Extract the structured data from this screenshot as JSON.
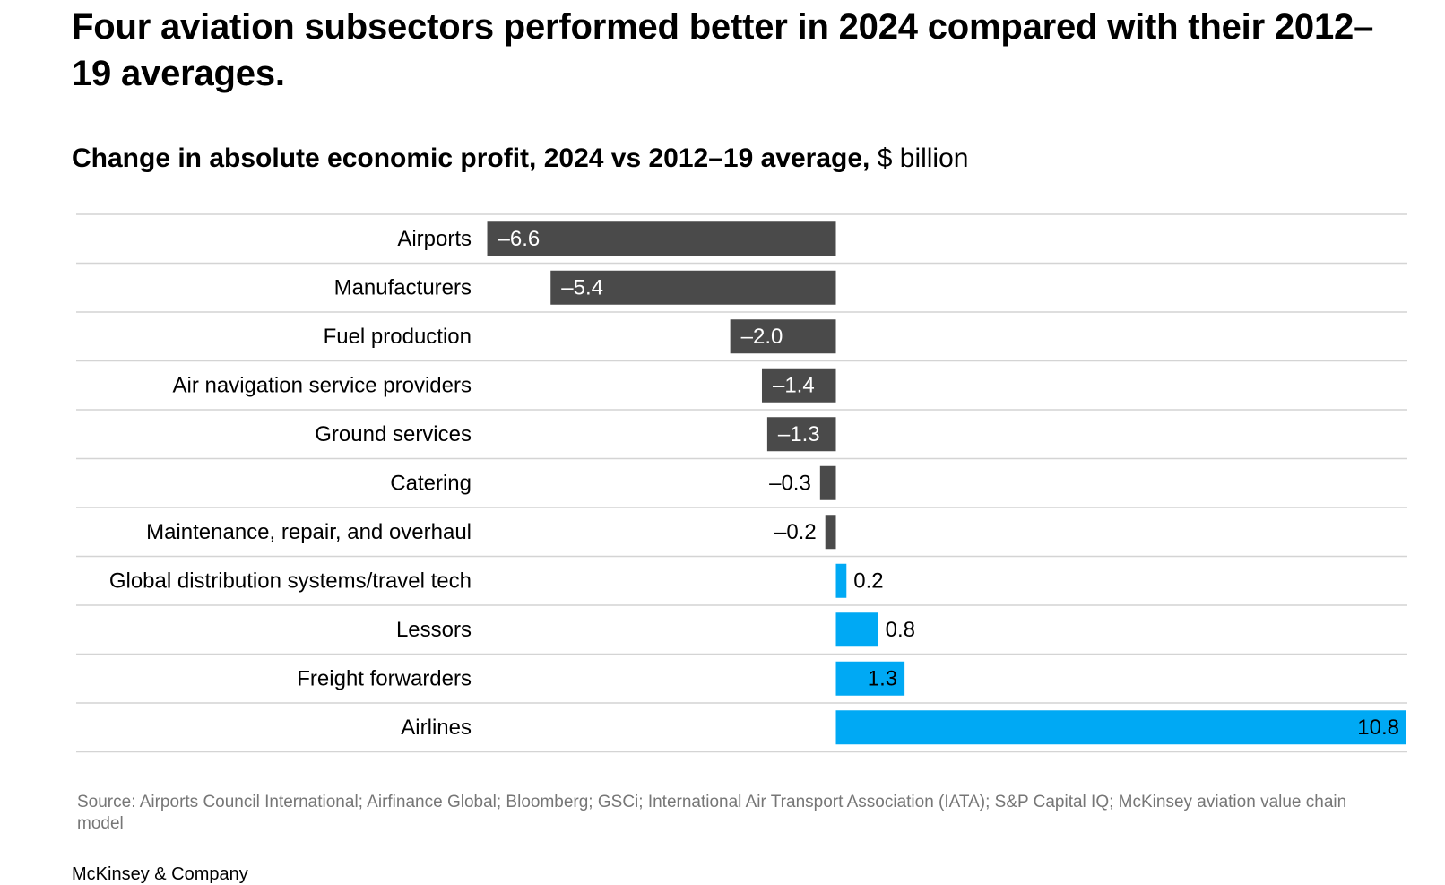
{
  "headline": "Four aviation subsectors performed better in 2024 compared with their 2012–19 averages.",
  "subtitle_bold": "Change in absolute economic profit, 2024 vs 2012–19 average,",
  "subtitle_unit": "$ billion",
  "source": "Source: Airports Council International; Airfinance Global; Bloomberg; GSCi; International Air Transport Association (IATA); S&P Capital IQ; McKinsey aviation value chain model",
  "brand": "McKinsey & Company",
  "colors": {
    "negative": "#4a4a4a",
    "positive": "#00a9f4",
    "gridline": "#d4d4d4"
  },
  "chart_data": {
    "type": "bar",
    "orientation": "horizontal",
    "title": "Change in absolute economic profit, 2024 vs 2012–19 average, $ billion",
    "categories": [
      "Airports",
      "Manufacturers",
      "Fuel production",
      "Air navigation service providers",
      "Ground services",
      "Catering",
      "Maintenance, repair, and overhaul",
      "Global distribution systems/travel tech",
      "Lessors",
      "Freight forwarders",
      "Airlines"
    ],
    "values": [
      -6.6,
      -5.4,
      -2.0,
      -1.4,
      -1.3,
      -0.3,
      -0.2,
      0.2,
      0.8,
      1.3,
      10.8
    ],
    "value_labels": [
      "–6.6",
      "–5.4",
      "–2.0",
      "–1.4",
      "–1.3",
      "–0.3",
      "–0.2",
      "0.2",
      "0.8",
      "1.3",
      "10.8"
    ],
    "xlim": [
      -6.6,
      10.8
    ],
    "grid": "horizontal row separators"
  }
}
